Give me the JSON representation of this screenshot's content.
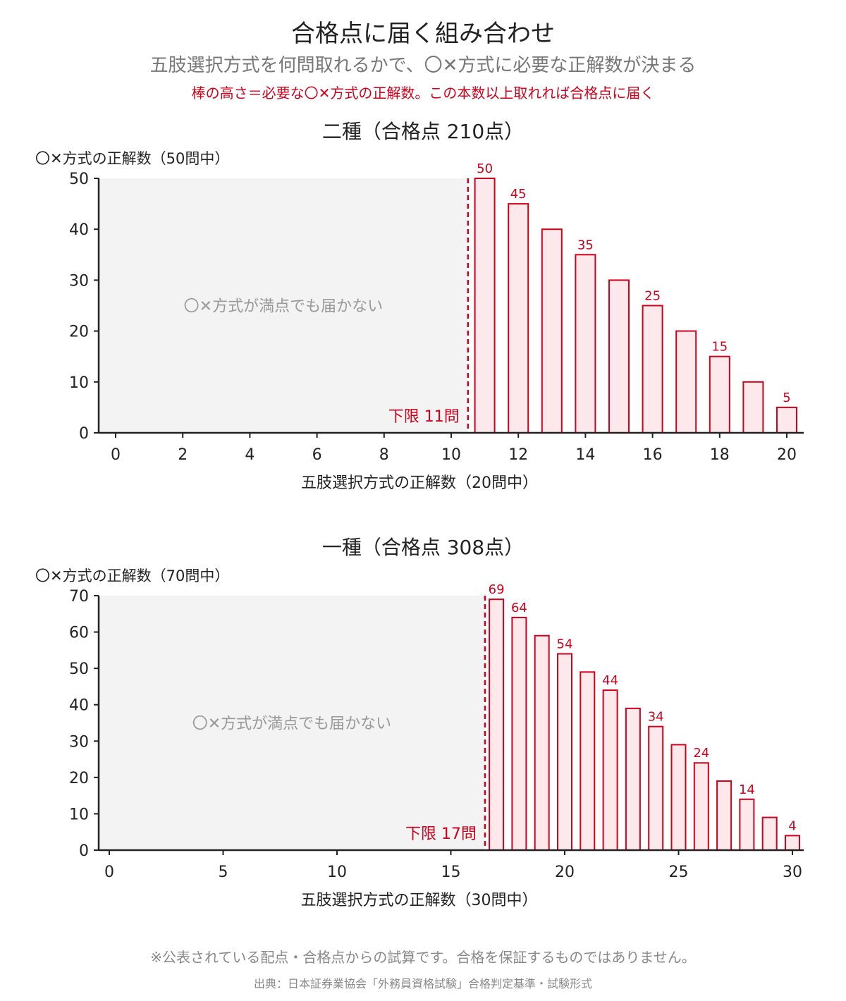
{
  "header": {
    "title": "合格点に届く組み合わせ",
    "subtitle": "五肢選択方式を何問取れるかで、〇✕方式に必要な正解数が決まる",
    "note": "棒の高さ＝必要な〇✕方式の正解数。この本数以上取れれば合格点に届く"
  },
  "footer": {
    "disclaimer": "※公表されている配点・合格点からの試算です。合格を保証するものではありません。",
    "source": "出典：日本証券業協会「外務員資格試験」合格判定基準・試験形式"
  },
  "colors": {
    "bar_stroke": "#d0021b",
    "bar_fill": "#fde8eb",
    "shade": "#f3f3f3",
    "axis": "#222222",
    "shade_text": "#999999"
  },
  "chart_data": [
    {
      "type": "bar",
      "title": "二種（合格点 210点）",
      "xlabel": "五肢選択方式の正解数（20問中）",
      "ylabel": "〇✕方式の正解数（50問中）",
      "xlim": [
        0,
        20
      ],
      "ylim": [
        0,
        50
      ],
      "xticks": [
        0,
        2,
        4,
        6,
        8,
        10,
        12,
        14,
        16,
        18,
        20
      ],
      "yticks": [
        0,
        10,
        20,
        30,
        40,
        50
      ],
      "x": [
        11,
        12,
        13,
        14,
        15,
        16,
        17,
        18,
        19,
        20
      ],
      "values": [
        50,
        45,
        40,
        35,
        30,
        25,
        20,
        15,
        10,
        5
      ],
      "labeled_x": [
        11,
        12,
        14,
        16,
        18,
        20
      ],
      "threshold_x": 10.5,
      "threshold_label": "下限 11問",
      "shade_label": "〇✕方式が満点でも届かない"
    },
    {
      "type": "bar",
      "title": "一種（合格点 308点）",
      "xlabel": "五肢選択方式の正解数（30問中）",
      "ylabel": "〇✕方式の正解数（70問中）",
      "xlim": [
        0,
        30
      ],
      "ylim": [
        0,
        70
      ],
      "xticks": [
        0,
        5,
        10,
        15,
        20,
        25,
        30
      ],
      "yticks": [
        0,
        10,
        20,
        30,
        40,
        50,
        60,
        70
      ],
      "x": [
        17,
        18,
        19,
        20,
        21,
        22,
        23,
        24,
        25,
        26,
        27,
        28,
        29,
        30
      ],
      "values": [
        69,
        64,
        59,
        54,
        49,
        44,
        39,
        34,
        29,
        24,
        19,
        14,
        9,
        4
      ],
      "labeled_x": [
        17,
        18,
        20,
        22,
        24,
        26,
        28,
        30
      ],
      "threshold_x": 16.5,
      "threshold_label": "下限 17問",
      "shade_label": "〇✕方式が満点でも届かない"
    }
  ]
}
